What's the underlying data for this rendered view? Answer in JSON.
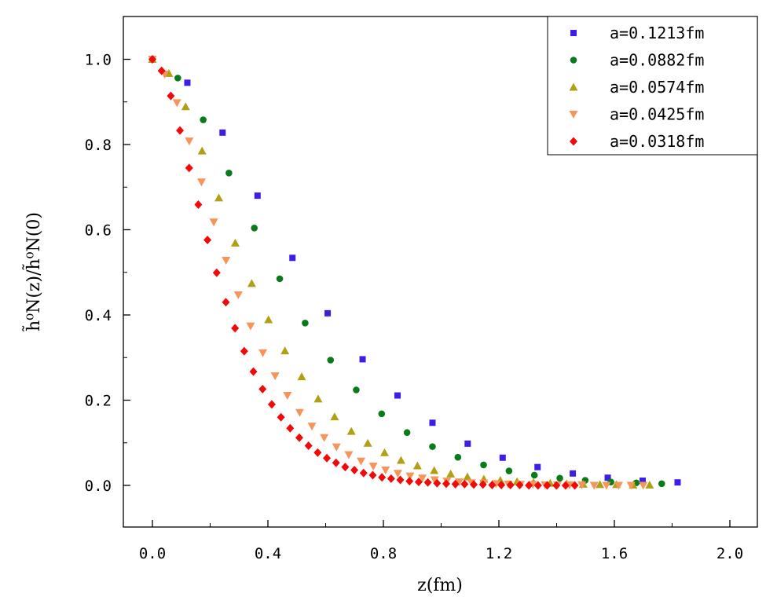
{
  "chart_data": {
    "type": "scatter",
    "title": "",
    "xlabel": "z(fm)",
    "ylabel": "h̃⁰N(z)/h̃⁰N(0)",
    "xlim": [
      -0.1,
      2.1
    ],
    "ylim": [
      -0.1,
      1.1
    ],
    "xticks": [
      "0.0",
      "0.4",
      "0.8",
      "1.2",
      "1.6",
      "2.0"
    ],
    "yticks": [
      "0.0",
      "0.2",
      "0.4",
      "0.6",
      "0.8",
      "1.0"
    ],
    "legend_position": "top-right",
    "series": [
      {
        "name": "a=0.1213fm",
        "marker": "square",
        "color": "#3b1fe6",
        "x": [
          0.0,
          0.121,
          0.243,
          0.364,
          0.485,
          0.607,
          0.728,
          0.849,
          0.97,
          1.092,
          1.213,
          1.334,
          1.456,
          1.577,
          1.698,
          1.819
        ],
        "y": [
          1.0,
          0.945,
          0.828,
          0.68,
          0.534,
          0.404,
          0.296,
          0.211,
          0.147,
          0.098,
          0.065,
          0.043,
          0.028,
          0.018,
          0.011,
          0.007
        ]
      },
      {
        "name": "a=0.0882fm",
        "marker": "circle",
        "color": "#0b7a1a",
        "x": [
          0.0,
          0.088,
          0.176,
          0.265,
          0.353,
          0.441,
          0.529,
          0.617,
          0.706,
          0.794,
          0.882,
          0.97,
          1.058,
          1.147,
          1.235,
          1.323,
          1.411,
          1.499,
          1.588,
          1.676,
          1.764
        ],
        "y": [
          1.0,
          0.956,
          0.858,
          0.733,
          0.604,
          0.485,
          0.381,
          0.294,
          0.224,
          0.168,
          0.124,
          0.091,
          0.066,
          0.048,
          0.034,
          0.024,
          0.017,
          0.012,
          0.008,
          0.006,
          0.004
        ]
      },
      {
        "name": "a=0.0574fm",
        "marker": "triangle-up",
        "color": "#b0a015",
        "x": [
          0.0,
          0.057,
          0.115,
          0.172,
          0.23,
          0.287,
          0.344,
          0.402,
          0.459,
          0.517,
          0.574,
          0.631,
          0.689,
          0.746,
          0.804,
          0.861,
          0.918,
          0.976,
          1.033,
          1.091,
          1.148,
          1.205,
          1.263,
          1.32,
          1.378,
          1.435,
          1.492,
          1.55,
          1.607,
          1.665,
          1.722
        ],
        "y": [
          1.0,
          0.967,
          0.889,
          0.785,
          0.675,
          0.569,
          0.474,
          0.389,
          0.316,
          0.255,
          0.203,
          0.161,
          0.127,
          0.099,
          0.077,
          0.059,
          0.046,
          0.035,
          0.027,
          0.02,
          0.015,
          0.012,
          0.009,
          0.007,
          0.005,
          0.004,
          0.003,
          0.002,
          0.002,
          0.001,
          0.001
        ]
      },
      {
        "name": "a=0.0425fm",
        "marker": "triangle-down",
        "color": "#f7945a",
        "x": [
          0.0,
          0.0425,
          0.085,
          0.1275,
          0.17,
          0.2125,
          0.255,
          0.2975,
          0.34,
          0.3825,
          0.425,
          0.4675,
          0.51,
          0.5525,
          0.595,
          0.6375,
          0.68,
          0.7225,
          0.765,
          0.8075,
          0.85,
          0.8925,
          0.935,
          0.9775,
          1.02,
          1.0625,
          1.105,
          1.1475,
          1.19,
          1.2325,
          1.275,
          1.3175,
          1.36,
          1.4025,
          1.445,
          1.4875,
          1.53,
          1.5725,
          1.615,
          1.6575,
          1.7
        ],
        "y": [
          1.0,
          0.965,
          0.898,
          0.808,
          0.712,
          0.618,
          0.528,
          0.447,
          0.374,
          0.311,
          0.257,
          0.211,
          0.171,
          0.139,
          0.112,
          0.09,
          0.072,
          0.057,
          0.045,
          0.036,
          0.028,
          0.022,
          0.017,
          0.013,
          0.01,
          0.008,
          0.006,
          0.005,
          0.004,
          0.003,
          0.002,
          0.002,
          0.001,
          0.001,
          0.001,
          0.001,
          0.0,
          0.0,
          0.0,
          0.0,
          0.0
        ]
      },
      {
        "name": "a=0.0318fm",
        "marker": "diamond",
        "color": "#f00a0a",
        "x": [
          0.0,
          0.0318,
          0.0636,
          0.0954,
          0.1272,
          0.159,
          0.1908,
          0.2226,
          0.2544,
          0.2862,
          0.318,
          0.3498,
          0.3816,
          0.4134,
          0.4452,
          0.477,
          0.5088,
          0.5406,
          0.5724,
          0.6042,
          0.636,
          0.6678,
          0.6996,
          0.7314,
          0.7632,
          0.795,
          0.8268,
          0.8586,
          0.8904,
          0.9222,
          0.954,
          0.9858,
          1.0176,
          1.0494,
          1.0812,
          1.113,
          1.1448,
          1.1766,
          1.2084,
          1.2402,
          1.272,
          1.3038,
          1.3356,
          1.3674,
          1.3992,
          1.431,
          1.4628
        ],
        "y": [
          1.0,
          0.973,
          0.914,
          0.833,
          0.745,
          0.659,
          0.576,
          0.499,
          0.43,
          0.369,
          0.315,
          0.267,
          0.226,
          0.19,
          0.16,
          0.134,
          0.112,
          0.093,
          0.077,
          0.064,
          0.053,
          0.043,
          0.036,
          0.029,
          0.024,
          0.019,
          0.016,
          0.013,
          0.01,
          0.008,
          0.007,
          0.005,
          0.004,
          0.003,
          0.003,
          0.002,
          0.002,
          0.001,
          0.001,
          0.001,
          0.001,
          0.0,
          0.0,
          0.0,
          0.0,
          0.0,
          0.0
        ]
      }
    ]
  }
}
